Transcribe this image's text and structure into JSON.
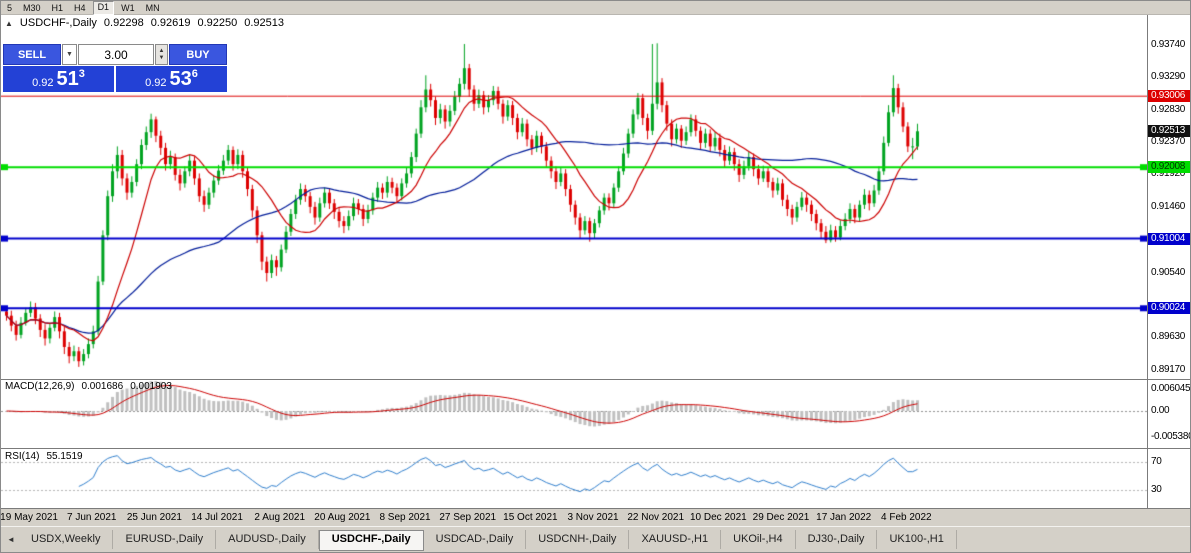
{
  "toolbar": {
    "items": [
      "5",
      "M30",
      "H1",
      "H4",
      "D1",
      "W1",
      "MN"
    ],
    "active": "D1"
  },
  "chart": {
    "title": {
      "symbol": "USDCHF-,Daily",
      "open": "0.92298",
      "high": "0.92619",
      "low": "0.92250",
      "close": "0.92513"
    },
    "price_scale": {
      "ticks": [
        "0.93740",
        "0.93290",
        "0.92830",
        "0.92370",
        "0.91920",
        "0.91460",
        "0.90540",
        "0.89630",
        "0.89170"
      ],
      "tags": [
        {
          "label": "0.93006",
          "bg": "#DD0000",
          "fg": "#FFFFFF"
        },
        {
          "label": "0.92513",
          "bg": "#101010",
          "fg": "#FFFFFF"
        },
        {
          "label": "0.92008",
          "bg": "#00DD00",
          "fg": "#003300"
        },
        {
          "label": "0.91004",
          "bg": "#0000CC",
          "fg": "#FFFFFF"
        },
        {
          "label": "0.90024",
          "bg": "#0000CC",
          "fg": "#FFFFFF"
        }
      ]
    }
  },
  "trade": {
    "sell_label": "SELL",
    "buy_label": "BUY",
    "volume": "3.00",
    "sell_price": {
      "prefix": "0.92",
      "big": "51",
      "sup": "3"
    },
    "buy_price": {
      "prefix": "0.92",
      "big": "53",
      "sup": "6"
    }
  },
  "macd": {
    "name": "MACD(12,26,9)",
    "value_main": "0.001686",
    "value_signal": "0.001903",
    "scale_top": "0.006045",
    "scale_zero": "0.00",
    "scale_bottom": "-0.005380"
  },
  "rsi": {
    "name": "RSI(14)",
    "value": "55.1519",
    "level_top": "70",
    "level_bottom": "30"
  },
  "tabs": {
    "scroll_left": "◄",
    "active_index": 3,
    "items": [
      "USDX,Weekly",
      "EURUSD-,Daily",
      "AUDUSD-,Daily",
      "USDCHF-,Daily",
      "USDCAD-,Daily",
      "USDCNH-,Daily",
      "XAUUSD-,H1",
      "UKOil-,H4",
      "DJ30-,Daily",
      "UK100-,H1"
    ]
  },
  "chart_data": {
    "type": "candlestick",
    "symbol": "USDCHF-",
    "timeframe": "Daily",
    "title": "USDCHF-,Daily",
    "ohlc_display": {
      "open": 0.92298,
      "high": 0.92619,
      "low": 0.9225,
      "close": 0.92513
    },
    "y_ticks": [
      0.9374,
      0.9329,
      0.9283,
      0.9237,
      0.9192,
      0.9146,
      0.9054,
      0.8963,
      0.8917
    ],
    "current_price": 0.92513,
    "horizontal_lines": [
      {
        "price": 0.93006,
        "color": "#DD0000",
        "width": 1
      },
      {
        "price": 0.92008,
        "color": "#00DD00",
        "width": 2
      },
      {
        "price": 0.91004,
        "color": "#0000CC",
        "width": 2
      },
      {
        "price": 0.90024,
        "color": "#0000CC",
        "width": 2
      }
    ],
    "indicators": {
      "macd": "12,26,9",
      "macd_values": [
        0.001686,
        0.001903
      ],
      "rsi_period": 14,
      "rsi_value": 55.1519,
      "rsi_levels": [
        70,
        30
      ]
    },
    "ma_periods": {
      "fast": 12,
      "slow": 45
    },
    "colors": {
      "bull": "#00A321",
      "bear": "#DD0000",
      "ma_fast": "#CC0000",
      "ma_slow": "#001C99",
      "macd_hist": "#C0C0C0",
      "macd_signal": "#CC0000",
      "rsi_line": "#2F7ECC"
    },
    "date_labels": [
      {
        "label": "19 May 2021",
        "index": 5
      },
      {
        "label": "7 Jun 2021",
        "index": 18
      },
      {
        "label": "25 Jun 2021",
        "index": 31
      },
      {
        "label": "14 Jul 2021",
        "index": 44
      },
      {
        "label": "2 Aug 2021",
        "index": 57
      },
      {
        "label": "20 Aug 2021",
        "index": 70
      },
      {
        "label": "8 Sep 2021",
        "index": 83
      },
      {
        "label": "27 Sep 2021",
        "index": 96
      },
      {
        "label": "15 Oct 2021",
        "index": 109
      },
      {
        "label": "3 Nov 2021",
        "index": 122
      },
      {
        "label": "22 Nov 2021",
        "index": 135
      },
      {
        "label": "10 Dec 2021",
        "index": 148
      },
      {
        "label": "29 Dec 2021",
        "index": 161
      },
      {
        "label": "17 Jan 2022",
        "index": 174
      },
      {
        "label": "4 Feb 2022",
        "index": 187
      }
    ],
    "candles": [
      [
        0.8998,
        0.9005,
        0.8985,
        0.8992
      ],
      [
        0.8992,
        0.8999,
        0.897,
        0.8978
      ],
      [
        0.8978,
        0.8985,
        0.8957,
        0.8965
      ],
      [
        0.8965,
        0.899,
        0.896,
        0.8982
      ],
      [
        0.8982,
        0.9003,
        0.8978,
        0.8996
      ],
      [
        0.8996,
        0.9012,
        0.899,
        0.9004
      ],
      [
        0.9004,
        0.901,
        0.898,
        0.8988
      ],
      [
        0.8988,
        0.8994,
        0.8962,
        0.8972
      ],
      [
        0.8972,
        0.898,
        0.895,
        0.896
      ],
      [
        0.896,
        0.8982,
        0.8953,
        0.8975
      ],
      [
        0.8975,
        0.8998,
        0.897,
        0.899
      ],
      [
        0.899,
        0.8996,
        0.896,
        0.897
      ],
      [
        0.897,
        0.8976,
        0.8938,
        0.8948
      ],
      [
        0.8948,
        0.8955,
        0.8925,
        0.8935
      ],
      [
        0.8935,
        0.895,
        0.8928,
        0.8942
      ],
      [
        0.8942,
        0.8948,
        0.892,
        0.8928
      ],
      [
        0.8928,
        0.8945,
        0.8922,
        0.8938
      ],
      [
        0.8938,
        0.896,
        0.8932,
        0.8952
      ],
      [
        0.8952,
        0.8978,
        0.8946,
        0.897
      ],
      [
        0.897,
        0.9048,
        0.8965,
        0.904
      ],
      [
        0.904,
        0.9112,
        0.9035,
        0.9105
      ],
      [
        0.9105,
        0.9168,
        0.9098,
        0.916
      ],
      [
        0.916,
        0.9205,
        0.9152,
        0.9195
      ],
      [
        0.9195,
        0.923,
        0.9185,
        0.9218
      ],
      [
        0.9218,
        0.9225,
        0.9175,
        0.9185
      ],
      [
        0.9185,
        0.9192,
        0.9155,
        0.9165
      ],
      [
        0.9165,
        0.9188,
        0.9158,
        0.918
      ],
      [
        0.918,
        0.9212,
        0.9174,
        0.9205
      ],
      [
        0.9205,
        0.924,
        0.9198,
        0.9232
      ],
      [
        0.9232,
        0.9258,
        0.9225,
        0.925
      ],
      [
        0.925,
        0.9276,
        0.9242,
        0.9268
      ],
      [
        0.9268,
        0.9272,
        0.9236,
        0.9245
      ],
      [
        0.9245,
        0.9252,
        0.9218,
        0.9228
      ],
      [
        0.9228,
        0.9235,
        0.9196,
        0.9205
      ],
      [
        0.9205,
        0.9224,
        0.9198,
        0.9215
      ],
      [
        0.9215,
        0.922,
        0.9182,
        0.919
      ],
      [
        0.919,
        0.9198,
        0.9168,
        0.9178
      ],
      [
        0.9178,
        0.9202,
        0.9172,
        0.9195
      ],
      [
        0.9195,
        0.9218,
        0.9188,
        0.921
      ],
      [
        0.921,
        0.9216,
        0.9176,
        0.9185
      ],
      [
        0.9185,
        0.9192,
        0.9152,
        0.916
      ],
      [
        0.916,
        0.9168,
        0.9138,
        0.9148
      ],
      [
        0.9148,
        0.9172,
        0.9142,
        0.9165
      ],
      [
        0.9165,
        0.919,
        0.9158,
        0.9182
      ],
      [
        0.9182,
        0.9204,
        0.9176,
        0.9196
      ],
      [
        0.9196,
        0.9218,
        0.919,
        0.921
      ],
      [
        0.921,
        0.9232,
        0.9204,
        0.9225
      ],
      [
        0.9225,
        0.923,
        0.9196,
        0.9205
      ],
      [
        0.9205,
        0.9226,
        0.9198,
        0.9218
      ],
      [
        0.9218,
        0.9224,
        0.9186,
        0.9195
      ],
      [
        0.9195,
        0.92,
        0.916,
        0.917
      ],
      [
        0.917,
        0.9176,
        0.913,
        0.914
      ],
      [
        0.914,
        0.9146,
        0.9094,
        0.9105
      ],
      [
        0.9105,
        0.911,
        0.9056,
        0.9068
      ],
      [
        0.9068,
        0.9075,
        0.904,
        0.9052
      ],
      [
        0.9052,
        0.9078,
        0.9045,
        0.907
      ],
      [
        0.907,
        0.9076,
        0.9048,
        0.906
      ],
      [
        0.906,
        0.9092,
        0.9054,
        0.9085
      ],
      [
        0.9085,
        0.9118,
        0.908,
        0.911
      ],
      [
        0.911,
        0.9142,
        0.9104,
        0.9135
      ],
      [
        0.9135,
        0.9162,
        0.9128,
        0.9155
      ],
      [
        0.9155,
        0.9178,
        0.9148,
        0.917
      ],
      [
        0.917,
        0.9176,
        0.9152,
        0.916
      ],
      [
        0.916,
        0.9166,
        0.9136,
        0.9145
      ],
      [
        0.9145,
        0.9152,
        0.912,
        0.913
      ],
      [
        0.913,
        0.9158,
        0.9124,
        0.915
      ],
      [
        0.915,
        0.9172,
        0.9144,
        0.9165
      ],
      [
        0.9165,
        0.917,
        0.9142,
        0.915
      ],
      [
        0.915,
        0.9156,
        0.9128,
        0.9138
      ],
      [
        0.9138,
        0.9144,
        0.9116,
        0.9125
      ],
      [
        0.9125,
        0.9132,
        0.9108,
        0.9118
      ],
      [
        0.9118,
        0.914,
        0.9112,
        0.9132
      ],
      [
        0.9132,
        0.9158,
        0.9126,
        0.915
      ],
      [
        0.915,
        0.9156,
        0.9134,
        0.9142
      ],
      [
        0.9142,
        0.9148,
        0.9118,
        0.9128
      ],
      [
        0.9128,
        0.9148,
        0.9122,
        0.914
      ],
      [
        0.914,
        0.9165,
        0.9134,
        0.9158
      ],
      [
        0.9158,
        0.918,
        0.9152,
        0.9172
      ],
      [
        0.9172,
        0.9178,
        0.9156,
        0.9165
      ],
      [
        0.9165,
        0.9188,
        0.9158,
        0.918
      ],
      [
        0.918,
        0.9186,
        0.9164,
        0.9172
      ],
      [
        0.9172,
        0.9178,
        0.915,
        0.916
      ],
      [
        0.916,
        0.9185,
        0.9154,
        0.9178
      ],
      [
        0.9178,
        0.92,
        0.9172,
        0.9192
      ],
      [
        0.9192,
        0.9222,
        0.9186,
        0.9215
      ],
      [
        0.9215,
        0.9255,
        0.9208,
        0.9248
      ],
      [
        0.9248,
        0.9295,
        0.9242,
        0.9285
      ],
      [
        0.9285,
        0.933,
        0.9278,
        0.931
      ],
      [
        0.931,
        0.9318,
        0.9286,
        0.9295
      ],
      [
        0.9295,
        0.93,
        0.926,
        0.927
      ],
      [
        0.927,
        0.929,
        0.9262,
        0.9282
      ],
      [
        0.9282,
        0.9288,
        0.9255,
        0.9265
      ],
      [
        0.9265,
        0.9288,
        0.9258,
        0.928
      ],
      [
        0.928,
        0.9308,
        0.9274,
        0.93
      ],
      [
        0.93,
        0.9326,
        0.9292,
        0.9318
      ],
      [
        0.9318,
        0.9374,
        0.931,
        0.934
      ],
      [
        0.934,
        0.9346,
        0.93,
        0.931
      ],
      [
        0.931,
        0.9316,
        0.928,
        0.929
      ],
      [
        0.929,
        0.931,
        0.9284,
        0.9302
      ],
      [
        0.9302,
        0.9308,
        0.9275,
        0.9285
      ],
      [
        0.9285,
        0.9302,
        0.9278,
        0.9295
      ],
      [
        0.9295,
        0.9315,
        0.9288,
        0.9308
      ],
      [
        0.9308,
        0.9314,
        0.9282,
        0.929
      ],
      [
        0.929,
        0.9296,
        0.9262,
        0.9272
      ],
      [
        0.9272,
        0.9295,
        0.9266,
        0.9288
      ],
      [
        0.9288,
        0.9294,
        0.926,
        0.927
      ],
      [
        0.927,
        0.9276,
        0.924,
        0.925
      ],
      [
        0.925,
        0.927,
        0.9244,
        0.9262
      ],
      [
        0.9262,
        0.9268,
        0.923,
        0.924
      ],
      [
        0.924,
        0.9246,
        0.9218,
        0.9228
      ],
      [
        0.9228,
        0.9252,
        0.9222,
        0.9245
      ],
      [
        0.9245,
        0.925,
        0.922,
        0.923
      ],
      [
        0.923,
        0.9236,
        0.92,
        0.921
      ],
      [
        0.921,
        0.9216,
        0.9185,
        0.9195
      ],
      [
        0.9195,
        0.9202,
        0.917,
        0.918
      ],
      [
        0.918,
        0.92,
        0.9174,
        0.9192
      ],
      [
        0.9192,
        0.9198,
        0.916,
        0.917
      ],
      [
        0.917,
        0.9176,
        0.9138,
        0.9148
      ],
      [
        0.9148,
        0.9154,
        0.912,
        0.913
      ],
      [
        0.913,
        0.9136,
        0.91,
        0.9112
      ],
      [
        0.9112,
        0.9132,
        0.9106,
        0.9125
      ],
      [
        0.9125,
        0.913,
        0.9096,
        0.9108
      ],
      [
        0.9108,
        0.9128,
        0.91,
        0.9122
      ],
      [
        0.9122,
        0.9146,
        0.9116,
        0.914
      ],
      [
        0.914,
        0.9164,
        0.9134,
        0.9158
      ],
      [
        0.9158,
        0.9164,
        0.914,
        0.915
      ],
      [
        0.915,
        0.9178,
        0.9144,
        0.9172
      ],
      [
        0.9172,
        0.9202,
        0.9166,
        0.9195
      ],
      [
        0.9195,
        0.9228,
        0.919,
        0.922
      ],
      [
        0.922,
        0.9255,
        0.9214,
        0.9248
      ],
      [
        0.9248,
        0.9282,
        0.9242,
        0.9275
      ],
      [
        0.9275,
        0.9305,
        0.9268,
        0.9298
      ],
      [
        0.9298,
        0.9304,
        0.926,
        0.927
      ],
      [
        0.927,
        0.9276,
        0.924,
        0.9252
      ],
      [
        0.9252,
        0.9374,
        0.9246,
        0.929
      ],
      [
        0.929,
        0.9375,
        0.9282,
        0.932
      ],
      [
        0.932,
        0.9326,
        0.9278,
        0.9288
      ],
      [
        0.9288,
        0.9294,
        0.9252,
        0.9262
      ],
      [
        0.9262,
        0.9268,
        0.923,
        0.924
      ],
      [
        0.924,
        0.9262,
        0.9234,
        0.9255
      ],
      [
        0.9255,
        0.926,
        0.9228,
        0.9238
      ],
      [
        0.9238,
        0.9258,
        0.9232,
        0.925
      ],
      [
        0.925,
        0.9275,
        0.9244,
        0.9268
      ],
      [
        0.9268,
        0.9274,
        0.9244,
        0.9252
      ],
      [
        0.9252,
        0.9258,
        0.9226,
        0.9235
      ],
      [
        0.9235,
        0.9255,
        0.9228,
        0.9248
      ],
      [
        0.9248,
        0.9254,
        0.9222,
        0.923
      ],
      [
        0.923,
        0.925,
        0.9224,
        0.9242
      ],
      [
        0.9242,
        0.9248,
        0.9216,
        0.9225
      ],
      [
        0.9225,
        0.9232,
        0.92,
        0.921
      ],
      [
        0.921,
        0.923,
        0.9204,
        0.9222
      ],
      [
        0.9222,
        0.9228,
        0.9196,
        0.9205
      ],
      [
        0.9205,
        0.9212,
        0.918,
        0.919
      ],
      [
        0.919,
        0.921,
        0.9184,
        0.9202
      ],
      [
        0.9202,
        0.9222,
        0.9196,
        0.9215
      ],
      [
        0.9215,
        0.922,
        0.9188,
        0.9198
      ],
      [
        0.9198,
        0.9204,
        0.9176,
        0.9185
      ],
      [
        0.9185,
        0.9203,
        0.918,
        0.9195
      ],
      [
        0.9195,
        0.92,
        0.9172,
        0.918
      ],
      [
        0.918,
        0.9186,
        0.9158,
        0.9168
      ],
      [
        0.9168,
        0.9186,
        0.9162,
        0.9178
      ],
      [
        0.9178,
        0.9184,
        0.9146,
        0.9155
      ],
      [
        0.9155,
        0.9162,
        0.9132,
        0.9142
      ],
      [
        0.9142,
        0.9148,
        0.912,
        0.913
      ],
      [
        0.913,
        0.9152,
        0.9124,
        0.9145
      ],
      [
        0.9145,
        0.9166,
        0.914,
        0.9158
      ],
      [
        0.9158,
        0.9164,
        0.9138,
        0.9148
      ],
      [
        0.9148,
        0.9154,
        0.9125,
        0.9135
      ],
      [
        0.9135,
        0.9141,
        0.9112,
        0.9122
      ],
      [
        0.9122,
        0.9128,
        0.91,
        0.911
      ],
      [
        0.911,
        0.9118,
        0.9094,
        0.9098
      ],
      [
        0.9098,
        0.912,
        0.9095,
        0.9112
      ],
      [
        0.9112,
        0.9118,
        0.9096,
        0.9102
      ],
      [
        0.9102,
        0.9126,
        0.9098,
        0.9118
      ],
      [
        0.9118,
        0.9136,
        0.9112,
        0.9128
      ],
      [
        0.9128,
        0.915,
        0.9122,
        0.9142
      ],
      [
        0.9142,
        0.9148,
        0.9122,
        0.913
      ],
      [
        0.913,
        0.9154,
        0.9125,
        0.9148
      ],
      [
        0.9148,
        0.917,
        0.9142,
        0.9162
      ],
      [
        0.9162,
        0.9168,
        0.914,
        0.915
      ],
      [
        0.915,
        0.9176,
        0.9145,
        0.9168
      ],
      [
        0.9168,
        0.9202,
        0.9162,
        0.9195
      ],
      [
        0.9195,
        0.9244,
        0.919,
        0.9235
      ],
      [
        0.9235,
        0.9288,
        0.923,
        0.9278
      ],
      [
        0.9278,
        0.933,
        0.9272,
        0.9312
      ],
      [
        0.9312,
        0.9318,
        0.9276,
        0.9285
      ],
      [
        0.9285,
        0.9292,
        0.925,
        0.9258
      ],
      [
        0.9258,
        0.9264,
        0.9222,
        0.923
      ],
      [
        0.923,
        0.9242,
        0.9212,
        0.923
      ],
      [
        0.92298,
        0.92619,
        0.9225,
        0.92513
      ]
    ]
  }
}
